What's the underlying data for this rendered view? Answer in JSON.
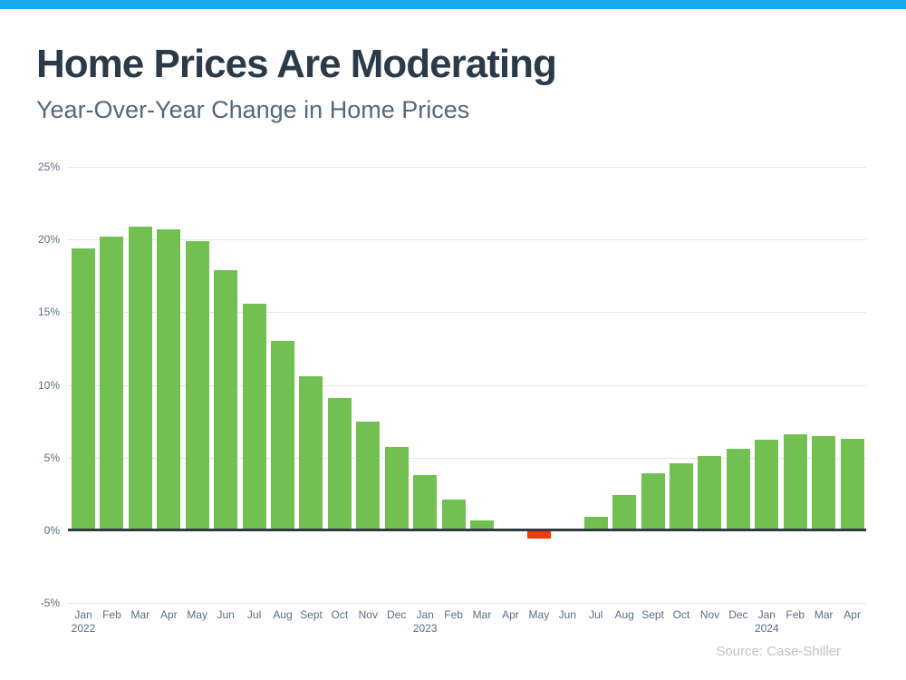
{
  "colors": {
    "accent_bar": "#16AAEC",
    "positive_bar": "#72C052",
    "negative_bar": "#F03B0C",
    "zero_line": "#313A43",
    "title_text": "#2B3A49",
    "subtitle_text": "#53687C",
    "axis_text": "#5B6E81",
    "gridline": "#E2E7EB",
    "source_text": "#B9C5CE",
    "background": "#FFFFFF"
  },
  "header": {
    "title": "Home Prices Are Moderating",
    "subtitle": "Year-Over-Year Change in Home Prices"
  },
  "footer": {
    "source": "Source: Case-Shiller"
  },
  "chart_data": {
    "type": "bar",
    "title": "Home Prices Are Moderating",
    "subtitle": "Year-Over-Year Change in Home Prices",
    "xlabel": "",
    "ylabel": "",
    "ylim": [
      -5,
      25
    ],
    "ytick_interval": 5,
    "ytick_suffix": "%",
    "grid": true,
    "legend_position": "none",
    "source": "Source: Case-Shiller",
    "categories": [
      {
        "month": "Jan",
        "year": "2022"
      },
      {
        "month": "Feb"
      },
      {
        "month": "Mar"
      },
      {
        "month": "Apr"
      },
      {
        "month": "May"
      },
      {
        "month": "Jun"
      },
      {
        "month": "Jul"
      },
      {
        "month": "Aug"
      },
      {
        "month": "Sept"
      },
      {
        "month": "Oct"
      },
      {
        "month": "Nov"
      },
      {
        "month": "Dec"
      },
      {
        "month": "Jan",
        "year": "2023"
      },
      {
        "month": "Feb"
      },
      {
        "month": "Mar"
      },
      {
        "month": "Apr"
      },
      {
        "month": "May"
      },
      {
        "month": "Jun"
      },
      {
        "month": "Jul"
      },
      {
        "month": "Aug"
      },
      {
        "month": "Sept"
      },
      {
        "month": "Oct"
      },
      {
        "month": "Nov"
      },
      {
        "month": "Dec"
      },
      {
        "month": "Jan",
        "year": "2024"
      },
      {
        "month": "Feb"
      },
      {
        "month": "Mar"
      },
      {
        "month": "Apr"
      }
    ],
    "values": [
      19.4,
      20.2,
      20.9,
      20.7,
      19.9,
      17.9,
      15.6,
      13.0,
      10.6,
      9.1,
      7.5,
      5.7,
      3.8,
      2.1,
      0.7,
      0.0,
      -0.5,
      0.0,
      0.9,
      2.4,
      3.9,
      4.6,
      5.1,
      5.6,
      6.2,
      6.6,
      6.5,
      6.3
    ]
  }
}
